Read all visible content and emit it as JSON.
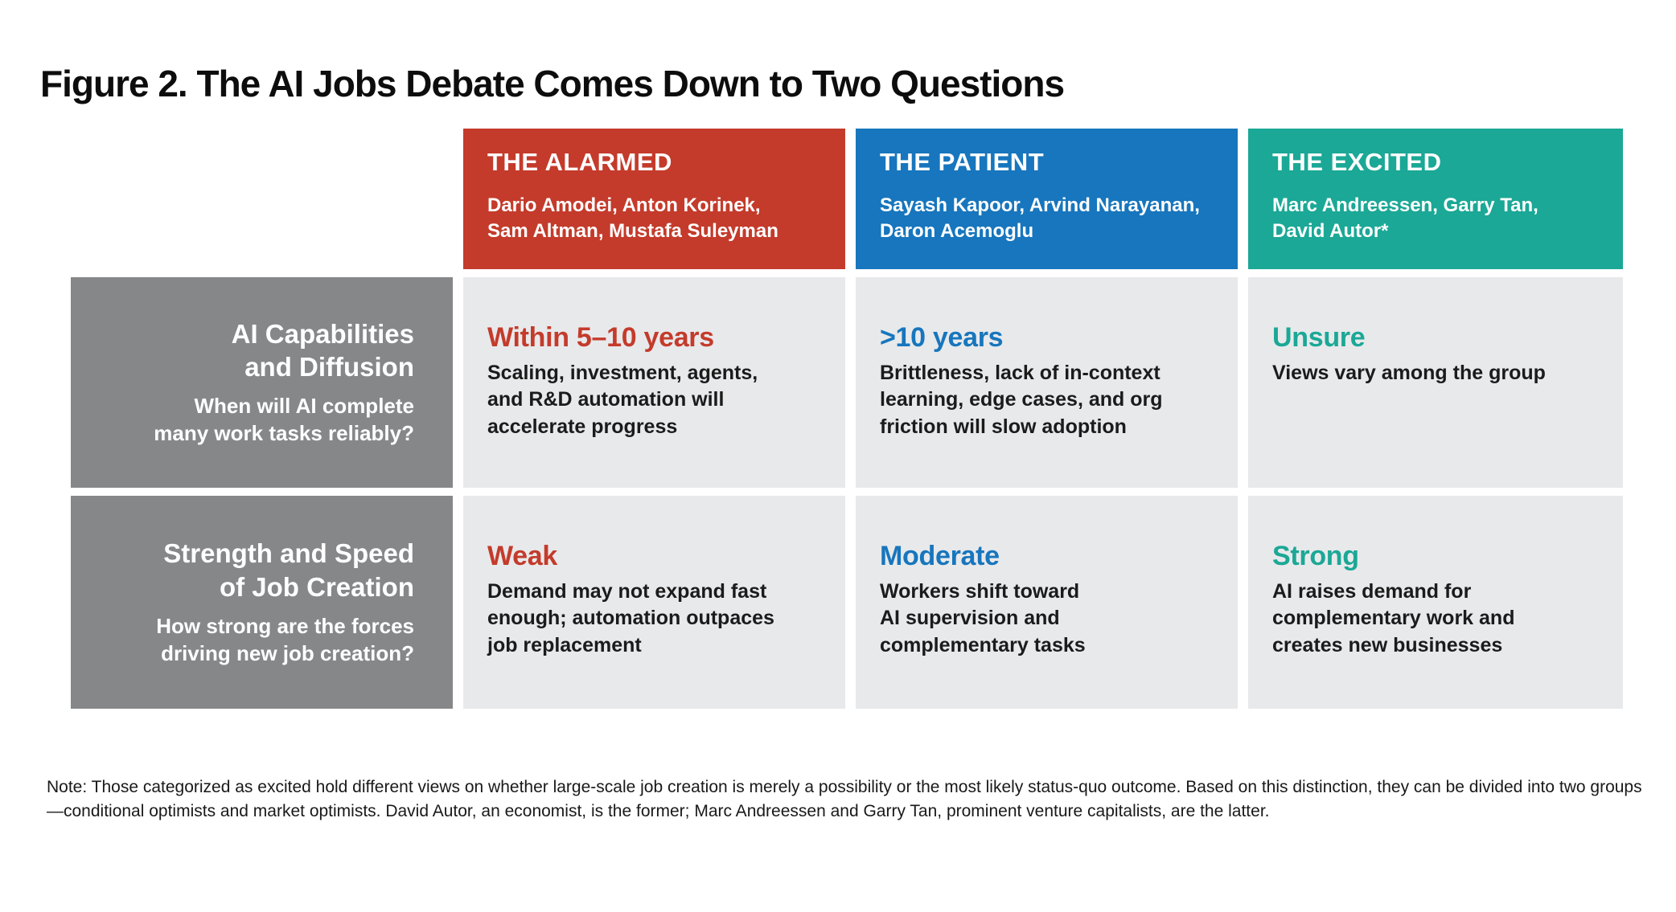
{
  "figure": {
    "title": "Figure 2. The AI Jobs Debate Comes Down to Two Questions",
    "note": "Note: Those categorized as excited hold different views on whether large-scale job creation is merely a possibility or the most likely status-quo outcome. Based on this distinction, they can be divided into two groups—conditional optimists and market optimists. David Autor, an economist, is the former; Marc Andreessen and Garry Tan, prominent venture capitalists, are the latter."
  },
  "colors": {
    "alarmed": "#C43B2B",
    "patient": "#1776BD",
    "excited": "#1BA896",
    "row_header_bg": "#868789",
    "cell_bg": "#E8E9EB"
  },
  "groups": [
    {
      "id": "alarmed",
      "label": "THE ALARMED",
      "members": "Dario Amodei, Anton Korinek,\nSam Altman, Mustafa Suleyman"
    },
    {
      "id": "patient",
      "label": "THE PATIENT",
      "members": "Sayash Kapoor, Arvind Narayanan,\nDaron Acemoglu"
    },
    {
      "id": "excited",
      "label": "THE EXCITED",
      "members": "Marc Andreessen, Garry Tan,\nDavid Autor*"
    }
  ],
  "rows": [
    {
      "id": "ai-capabilities-and-diffusion",
      "label": "AI Capabilities\nand Diffusion",
      "question": "When will AI complete\nmany work tasks reliably?",
      "cells": [
        {
          "group": "alarmed",
          "verdict": "Within 5–10 years",
          "detail": "Scaling, investment, agents,\nand R&D automation will\naccelerate progress"
        },
        {
          "group": "patient",
          "verdict": ">10 years",
          "detail": "Brittleness, lack of in-context\nlearning, edge cases, and org\nfriction will slow adoption"
        },
        {
          "group": "excited",
          "verdict": "Unsure",
          "detail": "Views vary among the group"
        }
      ]
    },
    {
      "id": "strength-and-speed-of-job-creation",
      "label": "Strength and Speed\nof Job Creation",
      "question": "How strong are the forces\ndriving new job creation?",
      "cells": [
        {
          "group": "alarmed",
          "verdict": "Weak",
          "detail": "Demand may not expand fast\nenough; automation outpaces\njob replacement"
        },
        {
          "group": "patient",
          "verdict": "Moderate",
          "detail": "Workers shift toward\nAI supervision and\ncomplementary tasks"
        },
        {
          "group": "excited",
          "verdict": "Strong",
          "detail": "AI raises demand for\ncomplementary work and\ncreates new businesses"
        }
      ]
    }
  ]
}
